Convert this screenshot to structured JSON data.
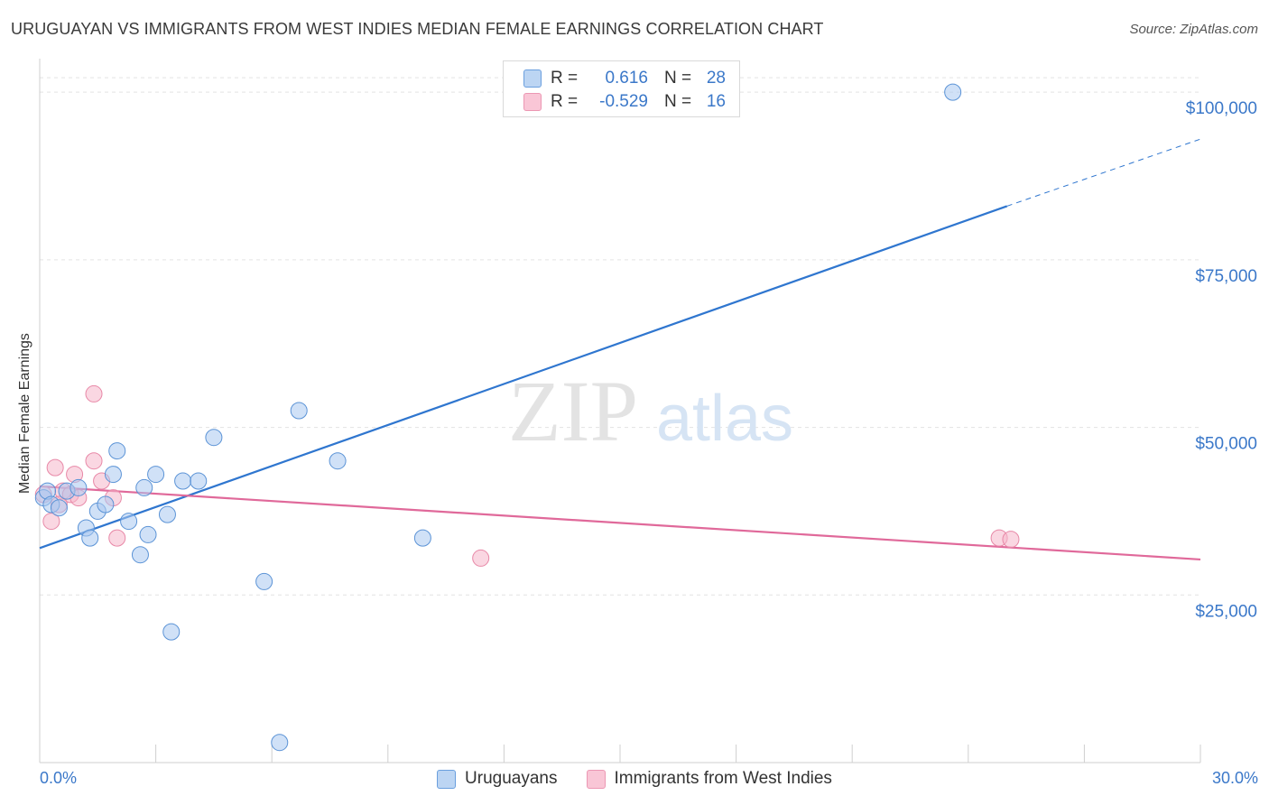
{
  "title": "URUGUAYAN VS IMMIGRANTS FROM WEST INDIES MEDIAN FEMALE EARNINGS CORRELATION CHART",
  "source": "Source: ZipAtlas.com",
  "watermark": {
    "zip": "ZIP",
    "atlas": "atlas"
  },
  "legend": {
    "rows": [
      {
        "r_label": "R =",
        "r_value": "0.616",
        "n_label": "N =",
        "n_value": "28"
      },
      {
        "r_label": "R =",
        "r_value": "-0.529",
        "n_label": "N =",
        "n_value": "16"
      }
    ]
  },
  "colors": {
    "blue_fill": "#a9c8f0",
    "blue_stroke": "#5b93d6",
    "blue_line": "#2f76cf",
    "pink_fill": "#f6b6ca",
    "pink_stroke": "#e888a7",
    "pink_line": "#e0699a",
    "axis_text": "#3b78c9",
    "grid": "#e3e3e3"
  },
  "chart_data": {
    "type": "scatter",
    "title": "URUGUAYAN VS IMMIGRANTS FROM WEST INDIES MEDIAN FEMALE EARNINGS CORRELATION CHART",
    "xlabel": "",
    "ylabel": "Median Female Earnings",
    "xlim": [
      0,
      30
    ],
    "ylim": [
      0,
      105000
    ],
    "x_tick_labels": [
      "0.0%",
      "30.0%"
    ],
    "y_ticks": [
      25000,
      50000,
      75000,
      100000
    ],
    "y_tick_labels": [
      "$25,000",
      "$50,000",
      "$75,000",
      "$100,000"
    ],
    "series": [
      {
        "name": "Uruguayans",
        "points": [
          [
            0.1,
            39500
          ],
          [
            0.2,
            40500
          ],
          [
            0.3,
            38500
          ],
          [
            0.5,
            38000
          ],
          [
            0.7,
            40500
          ],
          [
            1.0,
            41000
          ],
          [
            1.2,
            35000
          ],
          [
            1.3,
            33500
          ],
          [
            1.5,
            37500
          ],
          [
            1.7,
            38500
          ],
          [
            1.9,
            43000
          ],
          [
            2.0,
            46500
          ],
          [
            2.3,
            36000
          ],
          [
            2.6,
            31000
          ],
          [
            2.7,
            41000
          ],
          [
            2.8,
            34000
          ],
          [
            3.0,
            43000
          ],
          [
            3.3,
            37000
          ],
          [
            3.4,
            19500
          ],
          [
            3.7,
            42000
          ],
          [
            4.1,
            42000
          ],
          [
            4.5,
            48500
          ],
          [
            5.8,
            27000
          ],
          [
            6.2,
            3000
          ],
          [
            6.7,
            52500
          ],
          [
            7.7,
            45000
          ],
          [
            9.9,
            33500
          ],
          [
            23.6,
            100000
          ]
        ],
        "trend": {
          "x": [
            0,
            25
          ],
          "y": [
            32000,
            83000
          ],
          "dashed_to": [
            30,
            93000
          ]
        }
      },
      {
        "name": "Immigrants from West Indies",
        "points": [
          [
            0.1,
            40000
          ],
          [
            0.3,
            36000
          ],
          [
            0.4,
            44000
          ],
          [
            0.6,
            40500
          ],
          [
            0.8,
            40000
          ],
          [
            0.9,
            43000
          ],
          [
            1.0,
            39500
          ],
          [
            1.4,
            55000
          ],
          [
            1.4,
            45000
          ],
          [
            1.6,
            42000
          ],
          [
            1.9,
            39500
          ],
          [
            2.0,
            33500
          ],
          [
            11.4,
            30500
          ],
          [
            24.8,
            33500
          ],
          [
            25.1,
            33300
          ],
          [
            0.5,
            38500
          ]
        ],
        "trend": {
          "x": [
            0,
            30
          ],
          "y": [
            41200,
            30300
          ]
        }
      }
    ]
  }
}
